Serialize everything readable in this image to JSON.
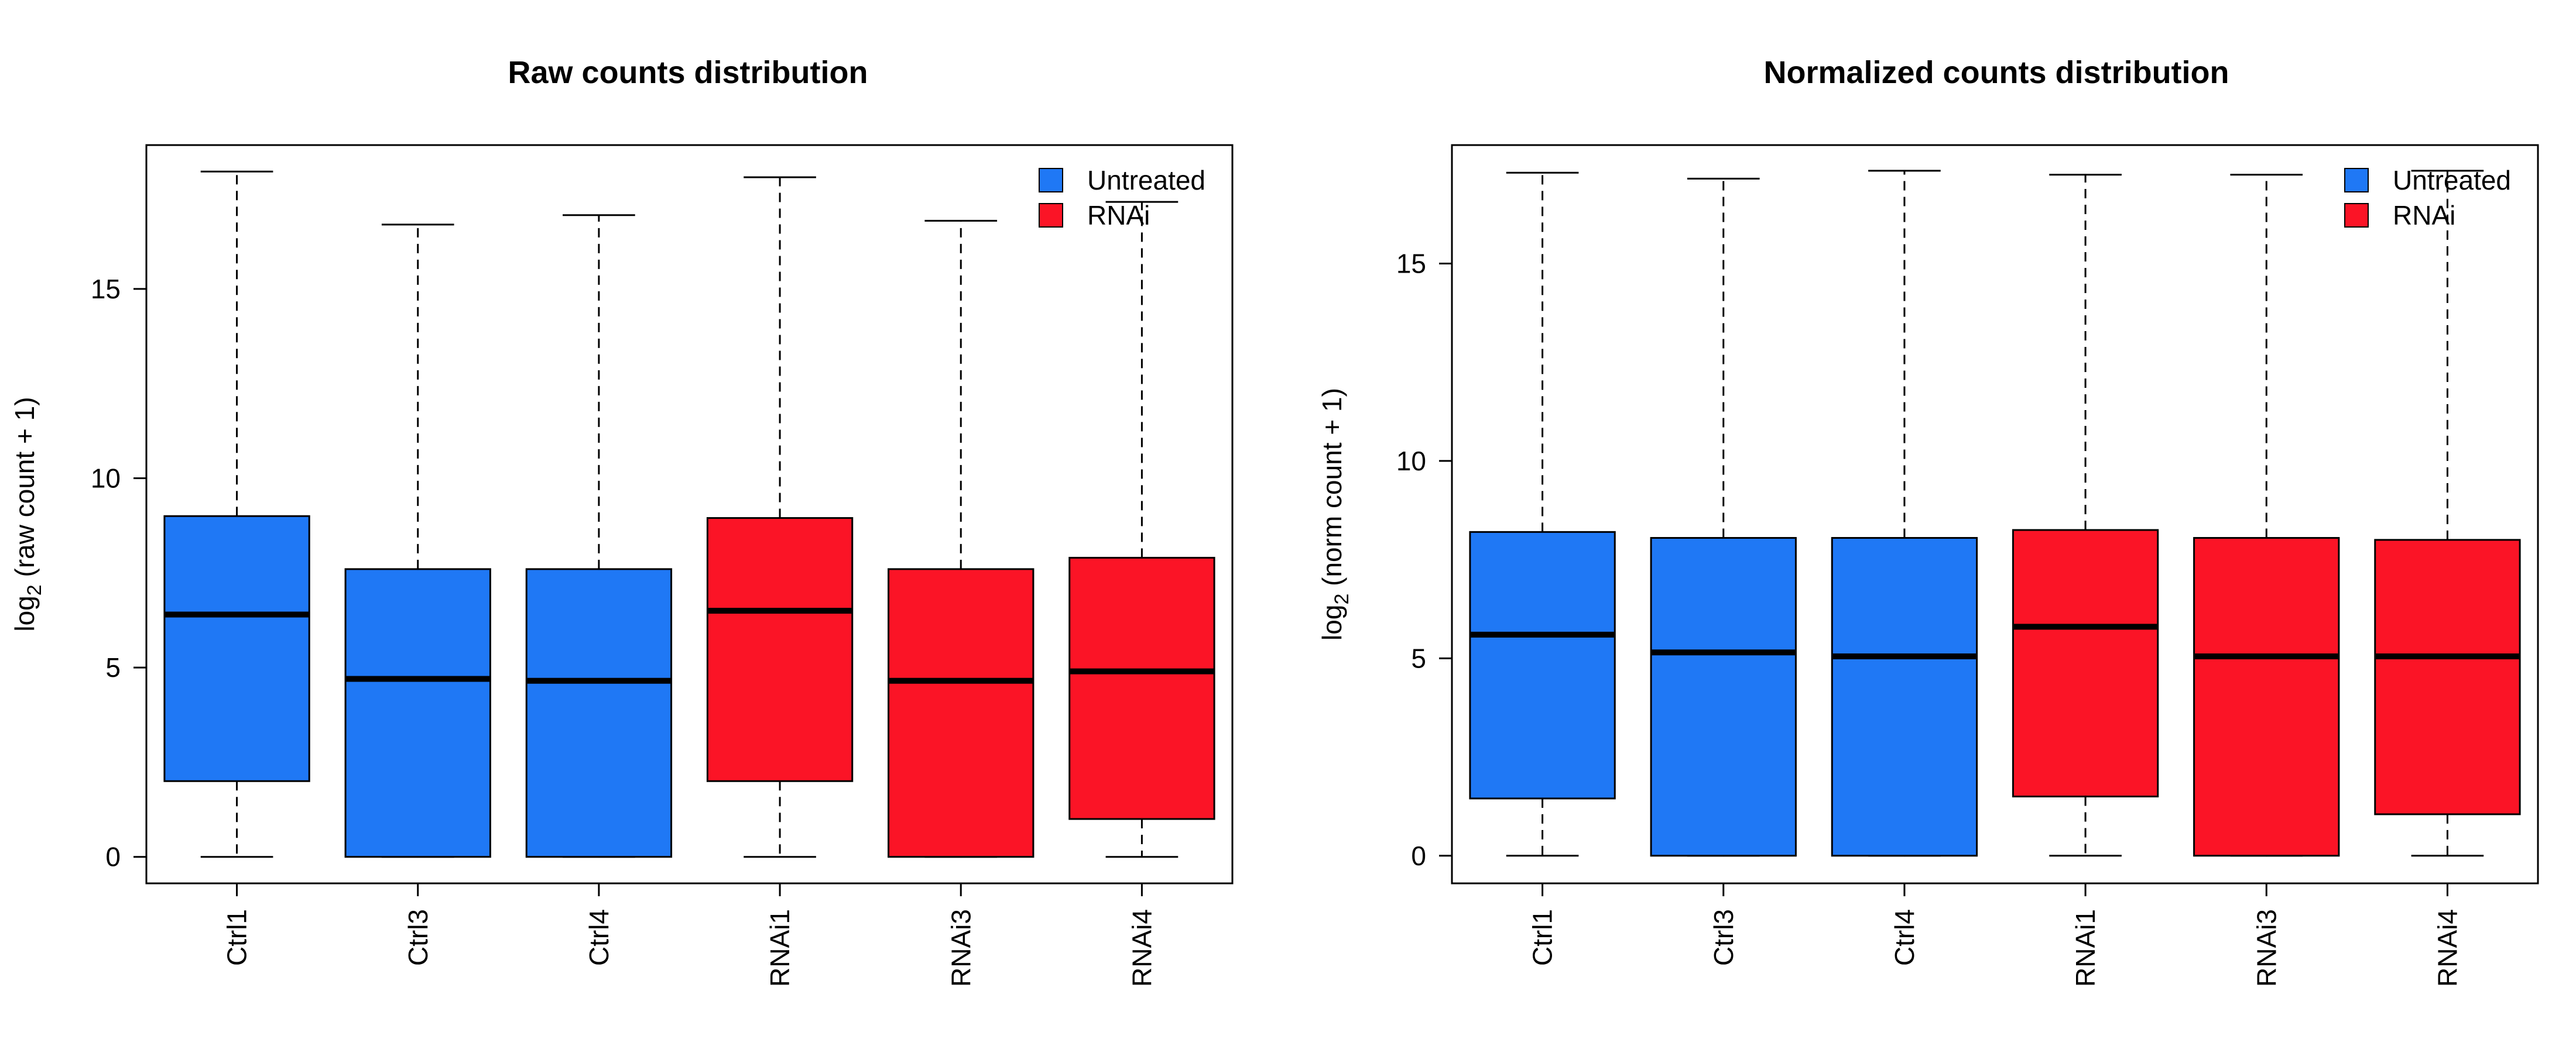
{
  "colors": {
    "untreated": "#1f78f5",
    "rnai": "#fb1426",
    "axis": "#000000",
    "background": "#ffffff"
  },
  "chart_data": [
    {
      "type": "box",
      "title": "Raw counts distribution",
      "ylabel": {
        "prefix": "log",
        "subscript": "2",
        "suffix": " (raw count + 1)"
      },
      "ylim": [
        -0.7,
        18.8
      ],
      "yticks": [
        0,
        5,
        10,
        15
      ],
      "categories": [
        "Ctrl1",
        "Ctrl3",
        "Ctrl4",
        "RNAi1",
        "RNAi3",
        "RNAi4"
      ],
      "groups": [
        "untreated",
        "untreated",
        "untreated",
        "rnai",
        "rnai",
        "rnai"
      ],
      "boxes": [
        {
          "min": 0,
          "q1": 2.0,
          "median": 6.4,
          "q3": 9.0,
          "max": 18.1
        },
        {
          "min": 0,
          "q1": 0.0,
          "median": 4.7,
          "q3": 7.6,
          "max": 16.7
        },
        {
          "min": 0,
          "q1": 0.0,
          "median": 4.65,
          "q3": 7.6,
          "max": 16.95
        },
        {
          "min": 0,
          "q1": 2.0,
          "median": 6.5,
          "q3": 8.95,
          "max": 17.95
        },
        {
          "min": 0,
          "q1": 0.0,
          "median": 4.65,
          "q3": 7.6,
          "max": 16.8
        },
        {
          "min": 0,
          "q1": 1.0,
          "median": 4.9,
          "q3": 7.9,
          "max": 17.3
        }
      ],
      "legend": {
        "position": "top-right",
        "entries": [
          {
            "label": "Untreated",
            "group": "untreated"
          },
          {
            "label": "RNAi",
            "group": "rnai"
          }
        ]
      }
    },
    {
      "type": "box",
      "title": "Normalized counts distribution",
      "ylabel": {
        "prefix": "log",
        "subscript": "2",
        "suffix": " (norm count + 1)"
      },
      "ylim": [
        -0.7,
        18.0
      ],
      "yticks": [
        0,
        5,
        10,
        15
      ],
      "categories": [
        "Ctrl1",
        "Ctrl3",
        "Ctrl4",
        "RNAi1",
        "RNAi3",
        "RNAi4"
      ],
      "groups": [
        "untreated",
        "untreated",
        "untreated",
        "rnai",
        "rnai",
        "rnai"
      ],
      "boxes": [
        {
          "min": 0,
          "q1": 1.45,
          "median": 5.6,
          "q3": 8.2,
          "max": 17.3
        },
        {
          "min": 0,
          "q1": 0.0,
          "median": 5.15,
          "q3": 8.05,
          "max": 17.15
        },
        {
          "min": 0,
          "q1": 0.0,
          "median": 5.05,
          "q3": 8.05,
          "max": 17.35
        },
        {
          "min": 0,
          "q1": 1.5,
          "median": 5.8,
          "q3": 8.25,
          "max": 17.25
        },
        {
          "min": 0,
          "q1": 0.0,
          "median": 5.05,
          "q3": 8.05,
          "max": 17.25
        },
        {
          "min": 0,
          "q1": 1.05,
          "median": 5.05,
          "q3": 8.0,
          "max": 17.35
        }
      ],
      "legend": {
        "position": "top-right",
        "entries": [
          {
            "label": "Untreated",
            "group": "untreated"
          },
          {
            "label": "RNAi",
            "group": "rnai"
          }
        ]
      }
    }
  ]
}
